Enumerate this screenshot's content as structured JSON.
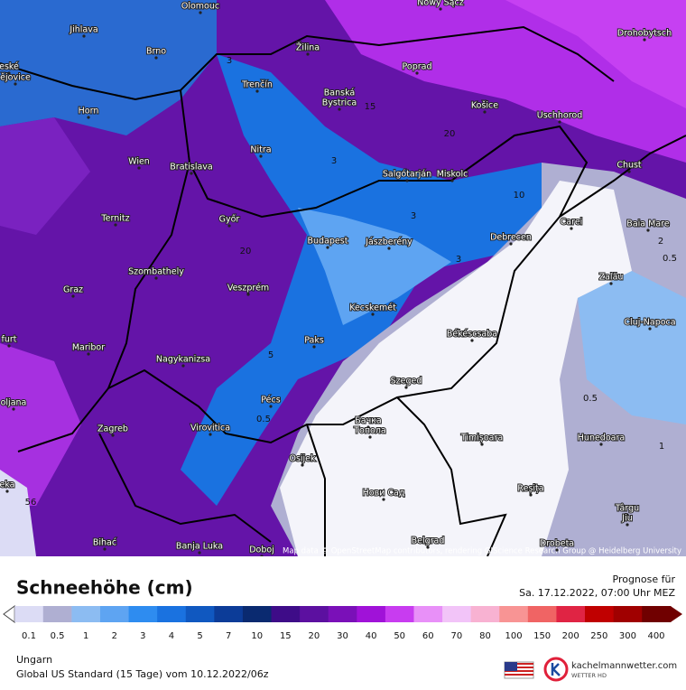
{
  "map": {
    "cities": [
      "Olomouc",
      "Nowy Sącz",
      "Jihlava",
      "Brno",
      "Žilina",
      "Drohobytsch",
      "eské",
      "ějovice",
      "Poprad",
      "Trenčín",
      "Banská",
      "Bystrica",
      "Horn",
      "Košice",
      "Uschhorod",
      "Nitra",
      "Wien",
      "Bratislava",
      "Salgótarján",
      "Miskolc",
      "Chust",
      "Ternitz",
      "Győr",
      "Carei",
      "Baia Mare",
      "Budapest",
      "Jászberény",
      "Debrecen",
      "Szombathely",
      "Zalău",
      "Graz",
      "Veszprém",
      "Kecskemét",
      "Cluj-Napoca",
      "furt",
      "Maribor",
      "Paks",
      "Békéscsaba",
      "Nagykanizsa",
      "Szeged",
      "oljana",
      "Pécs",
      "Zagreb",
      "Virovitica",
      "Бачка",
      "Топола",
      "Timișoara",
      "Hunedoara",
      "Osijek",
      "Нови Сад",
      "Reșița",
      "Târgu",
      "Jiu",
      "eka",
      "Bihać",
      "Banja Luka",
      "Doboj",
      "Belgrad",
      "Drobeta"
    ],
    "contours": [
      "3",
      "15",
      "20",
      "3",
      "10",
      "3",
      "3",
      "20",
      "5",
      "0.5",
      "2",
      "0.5",
      "0.5",
      "1",
      "56"
    ],
    "attribution": "Map data © OpenStreetMap contributors, rendering GIScience Research Group @ Heidelberg University"
  },
  "legend": {
    "title": "Schneehöhe (cm)",
    "forecast_label": "Prognose für",
    "forecast_time": "Sa. 17.12.2022, 07:00 Uhr MEZ",
    "labels": [
      "0.1",
      "0.5",
      "1",
      "2",
      "3",
      "4",
      "5",
      "7",
      "10",
      "15",
      "20",
      "30",
      "40",
      "50",
      "60",
      "70",
      "80",
      "100",
      "150",
      "200",
      "250",
      "300",
      "400"
    ],
    "colors": [
      "#dcdcf5",
      "#afafd2",
      "#8cbcf2",
      "#5ea4f2",
      "#2e8cf0",
      "#1a72e0",
      "#1058c0",
      "#0c3c98",
      "#0a2a70",
      "#3e0c88",
      "#5c10a0",
      "#7a10b8",
      "#a012d8",
      "#c83cf0",
      "#e890f8",
      "#f2c4f8",
      "#f8b2d2",
      "#f89494",
      "#f06464",
      "#e02444",
      "#c00000",
      "#a00000",
      "#700000"
    ]
  },
  "footer": {
    "region": "Ungarn",
    "model": "Global US Standard (15 Tage) vom 10.12.2022/06z",
    "site": "kachelmannwetter.com",
    "sub": "WETTER HD"
  }
}
